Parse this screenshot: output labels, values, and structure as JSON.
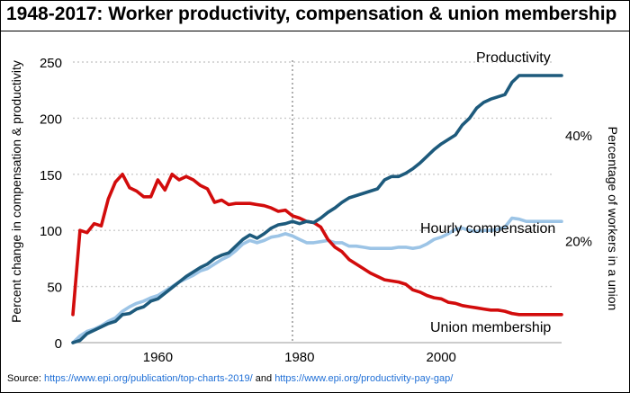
{
  "title": "1948-2017: Worker productivity, compensation & union membership",
  "source": {
    "prefix": "Source: ",
    "link1": "https://www.epi.org/publication/top-charts-2019/",
    "middle": " and ",
    "link2": "https://www.epi.org/productivity-pay-gap/"
  },
  "colors": {
    "productivity": "#1d5a7c",
    "compensation": "#9cc4e6",
    "union": "#d20c0c",
    "grid": "#cccccc",
    "url": "#1f6fd6"
  },
  "chart_data": {
    "type": "line",
    "title": "1948-2017: Worker productivity, compensation & union membership",
    "xlabel": "",
    "ylabel": "Percent change in compensation & productivity",
    "y2label": "Percentage of workers in a union",
    "xlim": [
      1948,
      2017
    ],
    "ylim": [
      0,
      250
    ],
    "y2ticks": [
      {
        "label": "20%",
        "left_value": 91
      },
      {
        "label": "40%",
        "left_value": 185
      }
    ],
    "xticks": [
      1960,
      1980,
      2000
    ],
    "yticks": [
      0,
      50,
      100,
      150,
      200,
      250
    ],
    "reference_line_x": 1979,
    "grid": "horizontal dotted",
    "series": [
      {
        "name": "Productivity",
        "axis": "left",
        "x": [
          1948,
          1949,
          1950,
          1951,
          1952,
          1953,
          1954,
          1955,
          1956,
          1957,
          1958,
          1959,
          1960,
          1961,
          1962,
          1963,
          1964,
          1965,
          1966,
          1967,
          1968,
          1969,
          1970,
          1971,
          1972,
          1973,
          1974,
          1975,
          1976,
          1977,
          1978,
          1979,
          1980,
          1981,
          1982,
          1983,
          1984,
          1985,
          1986,
          1987,
          1988,
          1989,
          1990,
          1991,
          1992,
          1993,
          1994,
          1995,
          1996,
          1997,
          1998,
          1999,
          2000,
          2001,
          2002,
          2003,
          2004,
          2005,
          2006,
          2007,
          2008,
          2009,
          2010,
          2011,
          2012,
          2013,
          2014,
          2015,
          2016,
          2017
        ],
        "values": [
          0,
          2,
          8,
          11,
          14,
          17,
          19,
          25,
          26,
          30,
          32,
          37,
          39,
          44,
          49,
          54,
          59,
          63,
          67,
          70,
          75,
          78,
          80,
          86,
          92,
          96,
          93,
          97,
          102,
          105,
          106,
          108,
          106,
          108,
          107,
          111,
          116,
          120,
          125,
          129,
          131,
          133,
          135,
          137,
          145,
          148,
          148,
          151,
          155,
          160,
          166,
          172,
          177,
          181,
          185,
          194,
          200,
          209,
          214,
          217,
          219,
          221,
          232,
          238,
          238,
          238,
          238,
          238,
          238,
          238
        ]
      },
      {
        "name": "Hourly compensation",
        "axis": "left",
        "x": [
          1948,
          1949,
          1950,
          1951,
          1952,
          1953,
          1954,
          1955,
          1956,
          1957,
          1958,
          1959,
          1960,
          1961,
          1962,
          1963,
          1964,
          1965,
          1966,
          1967,
          1968,
          1969,
          1970,
          1971,
          1972,
          1973,
          1974,
          1975,
          1976,
          1977,
          1978,
          1979,
          1980,
          1981,
          1982,
          1983,
          1984,
          1985,
          1986,
          1987,
          1988,
          1989,
          1990,
          1991,
          1992,
          1993,
          1994,
          1995,
          1996,
          1997,
          1998,
          1999,
          2000,
          2001,
          2002,
          2003,
          2004,
          2005,
          2006,
          2007,
          2008,
          2009,
          2010,
          2011,
          2012,
          2013,
          2014,
          2015,
          2016,
          2017
        ],
        "values": [
          0,
          6,
          10,
          12,
          15,
          19,
          22,
          28,
          32,
          35,
          37,
          40,
          42,
          46,
          50,
          54,
          57,
          60,
          64,
          66,
          70,
          74,
          77,
          82,
          88,
          91,
          89,
          91,
          94,
          95,
          97,
          95,
          92,
          89,
          89,
          90,
          91,
          89,
          89,
          86,
          86,
          85,
          84,
          84,
          84,
          84,
          85,
          85,
          84,
          85,
          88,
          92,
          94,
          97,
          101,
          102,
          100,
          99,
          100,
          100,
          101,
          103,
          111,
          110,
          108,
          108,
          108,
          108,
          108,
          108
        ]
      },
      {
        "name": "Union membership",
        "axis": "right",
        "x": [
          1948,
          1949,
          1950,
          1951,
          1952,
          1953,
          1954,
          1955,
          1956,
          1957,
          1958,
          1959,
          1960,
          1961,
          1962,
          1963,
          1964,
          1965,
          1966,
          1967,
          1968,
          1969,
          1970,
          1971,
          1972,
          1973,
          1974,
          1975,
          1976,
          1977,
          1978,
          1979,
          1980,
          1981,
          1982,
          1983,
          1984,
          1985,
          1986,
          1987,
          1988,
          1989,
          1990,
          1991,
          1992,
          1993,
          1994,
          1995,
          1996,
          1997,
          1998,
          1999,
          2000,
          2001,
          2002,
          2003,
          2004,
          2005,
          2006,
          2007,
          2008,
          2009,
          2010,
          2011,
          2012,
          2013,
          2014,
          2015,
          2016,
          2017
        ],
        "values": [
          25,
          100,
          98,
          106,
          104,
          128,
          143,
          150,
          138,
          135,
          130,
          130,
          145,
          136,
          150,
          145,
          148,
          145,
          140,
          137,
          125,
          127,
          123,
          124,
          124,
          124,
          123,
          122,
          120,
          117,
          118,
          113,
          111,
          108,
          107,
          103,
          92,
          85,
          81,
          74,
          70,
          66,
          62,
          59,
          56,
          55,
          54,
          52,
          47,
          45,
          42,
          40,
          39,
          36,
          35,
          33,
          32,
          31,
          30,
          29,
          29,
          28,
          26,
          25,
          25,
          25,
          25,
          25,
          25,
          25
        ]
      }
    ]
  },
  "series_labels": {
    "productivity": "Productivity",
    "compensation": "Hourly compensation",
    "union": "Union membership"
  }
}
